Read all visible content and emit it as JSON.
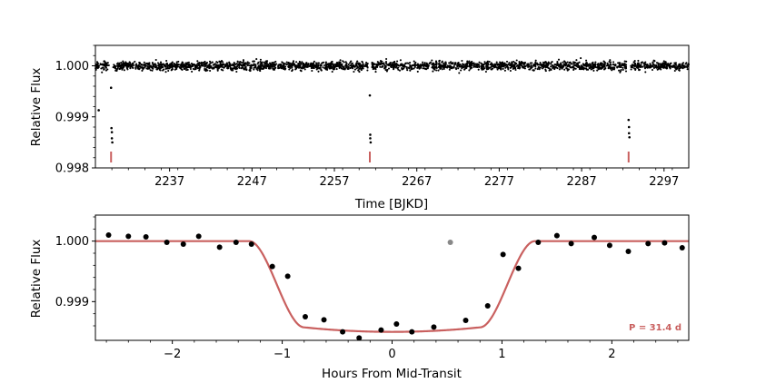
{
  "colors": {
    "points": "#000000",
    "model": "#c9605f",
    "transit_marker": "#c9605f",
    "outlier": "#888888"
  },
  "chart_data": [
    {
      "type": "scatter",
      "xlabel": "Time [BJKD]",
      "ylabel": "Relative Flux",
      "xlim": [
        2228,
        2300
      ],
      "ylim": [
        0.998,
        1.0004
      ],
      "xticks": [
        2237,
        2247,
        2257,
        2267,
        2277,
        2287,
        2297
      ],
      "yticks": [
        0.998,
        0.999,
        1.0
      ],
      "ytick_labels": [
        "0.998",
        "0.999",
        "1.000"
      ],
      "xtick_labels": [
        "2237",
        "2247",
        "2257",
        "2267",
        "2277",
        "2287",
        "2297"
      ],
      "baseline_flux": 1.0,
      "baseline_scatter": 0.0001,
      "time_range": [
        2228,
        2300
      ],
      "transit_points": [
        {
          "x": 2228.4,
          "y": 0.99913
        },
        {
          "x": 2229.9,
          "y": 0.99957
        },
        {
          "x": 2229.95,
          "y": 0.99878
        },
        {
          "x": 2230.0,
          "y": 0.9987
        },
        {
          "x": 2230.0,
          "y": 0.99858
        },
        {
          "x": 2230.05,
          "y": 0.9985
        },
        {
          "x": 2261.3,
          "y": 0.99942
        },
        {
          "x": 2261.35,
          "y": 0.99865
        },
        {
          "x": 2261.35,
          "y": 0.99858
        },
        {
          "x": 2261.4,
          "y": 0.9985
        },
        {
          "x": 2292.7,
          "y": 0.99894
        },
        {
          "x": 2292.75,
          "y": 0.9988
        },
        {
          "x": 2292.75,
          "y": 0.99868
        },
        {
          "x": 2292.8,
          "y": 0.9986
        }
      ],
      "transit_markers": [
        2229.9,
        2261.3,
        2292.7
      ]
    },
    {
      "type": "scatter",
      "xlabel": "Hours From Mid-Transit",
      "ylabel": "Relative Flux",
      "xlim": [
        -2.7,
        2.7
      ],
      "ylim": [
        0.99836,
        1.00043
      ],
      "xticks": [
        -2,
        -1,
        0,
        1,
        2
      ],
      "xtick_labels": [
        "−2",
        "−1",
        "0",
        "1",
        "2"
      ],
      "yticks": [
        0.999,
        1.0
      ],
      "ytick_labels": [
        "0.999",
        "1.000"
      ],
      "annotation": "P = 31.4 d",
      "binned_points": [
        {
          "x": -2.58,
          "y": 1.0001
        },
        {
          "x": -2.4,
          "y": 1.00008
        },
        {
          "x": -2.24,
          "y": 1.00007
        },
        {
          "x": -2.05,
          "y": 0.99998
        },
        {
          "x": -1.9,
          "y": 0.99995
        },
        {
          "x": -1.76,
          "y": 1.00008
        },
        {
          "x": -1.57,
          "y": 0.9999
        },
        {
          "x": -1.42,
          "y": 0.99998
        },
        {
          "x": -1.28,
          "y": 0.99995
        },
        {
          "x": -1.09,
          "y": 0.99958
        },
        {
          "x": -0.95,
          "y": 0.99942
        },
        {
          "x": -0.79,
          "y": 0.99875
        },
        {
          "x": -0.62,
          "y": 0.9987
        },
        {
          "x": -0.45,
          "y": 0.9985
        },
        {
          "x": -0.3,
          "y": 0.9984
        },
        {
          "x": -0.1,
          "y": 0.99853
        },
        {
          "x": 0.04,
          "y": 0.99863
        },
        {
          "x": 0.18,
          "y": 0.9985
        },
        {
          "x": 0.38,
          "y": 0.99858
        },
        {
          "x": 0.67,
          "y": 0.99869
        },
        {
          "x": 0.87,
          "y": 0.99893
        },
        {
          "x": 1.01,
          "y": 0.99978
        },
        {
          "x": 1.15,
          "y": 0.99955
        },
        {
          "x": 1.33,
          "y": 0.99998
        },
        {
          "x": 1.5,
          "y": 1.00009
        },
        {
          "x": 1.63,
          "y": 0.99996
        },
        {
          "x": 1.84,
          "y": 1.00006
        },
        {
          "x": 1.98,
          "y": 0.99993
        },
        {
          "x": 2.15,
          "y": 0.99983
        },
        {
          "x": 2.33,
          "y": 0.99996
        },
        {
          "x": 2.48,
          "y": 0.99997
        },
        {
          "x": 2.64,
          "y": 0.99989
        }
      ],
      "outlier_points": [
        {
          "x": 0.53,
          "y": 0.99998
        }
      ],
      "model": {
        "depth": 0.0015,
        "total_duration_hours": 2.6,
        "full_duration_hours": 1.6
      }
    }
  ]
}
